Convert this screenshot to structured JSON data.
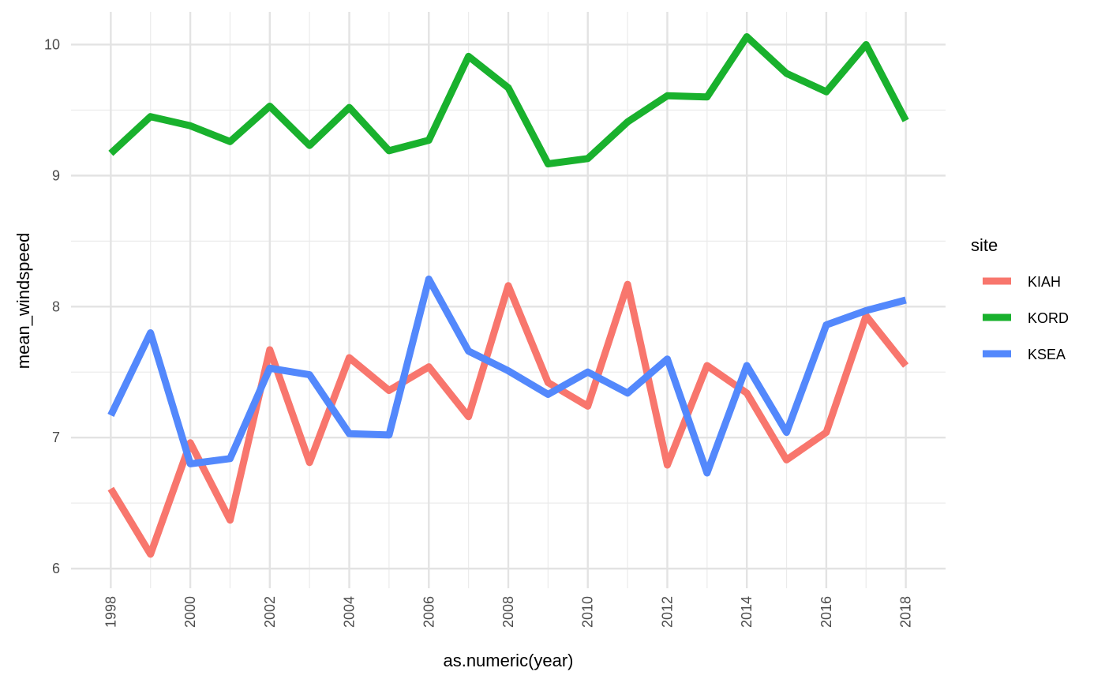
{
  "chart_data": {
    "type": "line",
    "xlabel": "as.numeric(year)",
    "ylabel": "mean_windspeed",
    "xlim": [
      1997,
      2019
    ],
    "ylim": [
      5.85,
      10.25
    ],
    "x_ticks": [
      1998,
      2000,
      2002,
      2004,
      2006,
      2008,
      2010,
      2012,
      2014,
      2016,
      2018
    ],
    "y_ticks": [
      6,
      7,
      8,
      9,
      10
    ],
    "grid": true,
    "legend": {
      "title": "site",
      "position": "right"
    },
    "x": [
      1998,
      1999,
      2000,
      2001,
      2002,
      2003,
      2004,
      2005,
      2006,
      2007,
      2008,
      2009,
      2010,
      2011,
      2012,
      2013,
      2014,
      2015,
      2016,
      2017,
      2018
    ],
    "series": [
      {
        "name": "KIAH",
        "color": "#F8766D",
        "values": [
          6.61,
          6.11,
          6.96,
          6.37,
          7.67,
          6.81,
          7.61,
          7.36,
          7.54,
          7.16,
          8.16,
          7.42,
          7.24,
          8.17,
          6.79,
          7.55,
          7.34,
          6.83,
          7.04,
          7.93,
          7.55
        ]
      },
      {
        "name": "KORD",
        "color": "#19B12D",
        "values": [
          9.17,
          9.45,
          9.38,
          9.26,
          9.53,
          9.23,
          9.52,
          9.19,
          9.27,
          9.91,
          9.67,
          9.09,
          9.13,
          9.41,
          9.61,
          9.6,
          10.06,
          9.78,
          9.64,
          10.0,
          9.42
        ]
      },
      {
        "name": "KSEA",
        "color": "#5388FC",
        "values": [
          7.17,
          7.8,
          6.8,
          6.84,
          7.53,
          7.48,
          7.03,
          7.02,
          8.21,
          7.66,
          7.51,
          7.33,
          7.5,
          7.34,
          7.6,
          6.73,
          7.55,
          7.04,
          7.86,
          7.97,
          8.05
        ]
      }
    ]
  }
}
